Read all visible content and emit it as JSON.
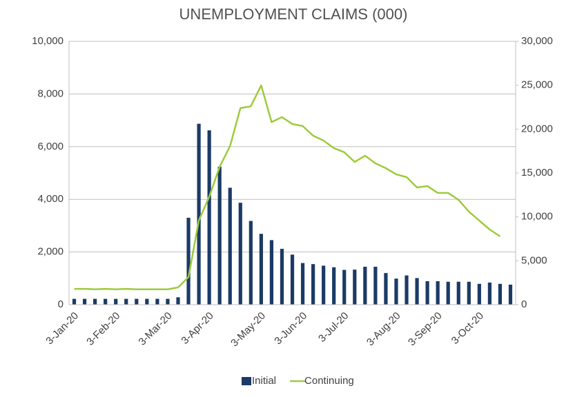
{
  "chart_data": {
    "type": "bar-line",
    "title": "UNEMPLOYMENT CLAIMS (000)",
    "categories": [
      "3-Jan-20",
      null,
      null,
      null,
      "3-Feb-20",
      null,
      null,
      null,
      null,
      "3-Mar-20",
      null,
      null,
      null,
      "3-Apr-20",
      null,
      null,
      null,
      null,
      "3-May-20",
      null,
      null,
      null,
      "3-Jun-20",
      null,
      null,
      null,
      "3-Jul-20",
      null,
      null,
      null,
      null,
      "3-Aug-20",
      null,
      null,
      null,
      "3-Sep-20",
      null,
      null,
      null,
      "3-Oct-20",
      null,
      null,
      null
    ],
    "series": [
      {
        "name": "Initial",
        "color": "#1b3a66",
        "kind": "bar",
        "axis": "y",
        "values": [
          220,
          220,
          220,
          220,
          220,
          220,
          220,
          220,
          220,
          220,
          280,
          3300,
          6870,
          6620,
          5240,
          4440,
          3870,
          3180,
          2690,
          2450,
          2120,
          1900,
          1580,
          1540,
          1480,
          1420,
          1320,
          1330,
          1440,
          1440,
          1200,
          990,
          1110,
          1010,
          890,
          890,
          870,
          870,
          870,
          790,
          840,
          790,
          760
        ]
      },
      {
        "name": "Continuing",
        "color": "#9dcb3b",
        "kind": "line",
        "axis": "y2",
        "values": [
          1800,
          1800,
          1750,
          1800,
          1750,
          1800,
          1750,
          1750,
          1750,
          1750,
          1960,
          3140,
          9600,
          12300,
          15700,
          18070,
          22390,
          22600,
          24980,
          20800,
          21370,
          20580,
          20350,
          19250,
          18700,
          17830,
          17360,
          16260,
          16970,
          16100,
          15550,
          14850,
          14530,
          13350,
          13510,
          12730,
          12730,
          11940,
          10600,
          9580,
          8560,
          7780,
          null
        ]
      }
    ],
    "ylim": [
      0,
      10000
    ],
    "yticks": [
      0,
      {
        "value": 2000,
        "label": "2,000"
      },
      {
        "value": 4000,
        "label": "4,000"
      },
      {
        "value": 6000,
        "label": "6,000"
      },
      {
        "value": 8000,
        "label": "8,000"
      },
      {
        "value": 10000,
        "label": "10,000"
      }
    ],
    "y2lim": [
      0,
      30000
    ],
    "y2ticks": [
      0,
      {
        "value": 5000,
        "label": "5,000"
      },
      {
        "value": 10000,
        "label": "10,000"
      },
      {
        "value": 15000,
        "label": "15,000"
      },
      {
        "value": 20000,
        "label": "20,000"
      },
      {
        "value": 25000,
        "label": "25,000"
      },
      {
        "value": 30000,
        "label": "30,000"
      }
    ],
    "grid": true,
    "legend": "bottom"
  }
}
